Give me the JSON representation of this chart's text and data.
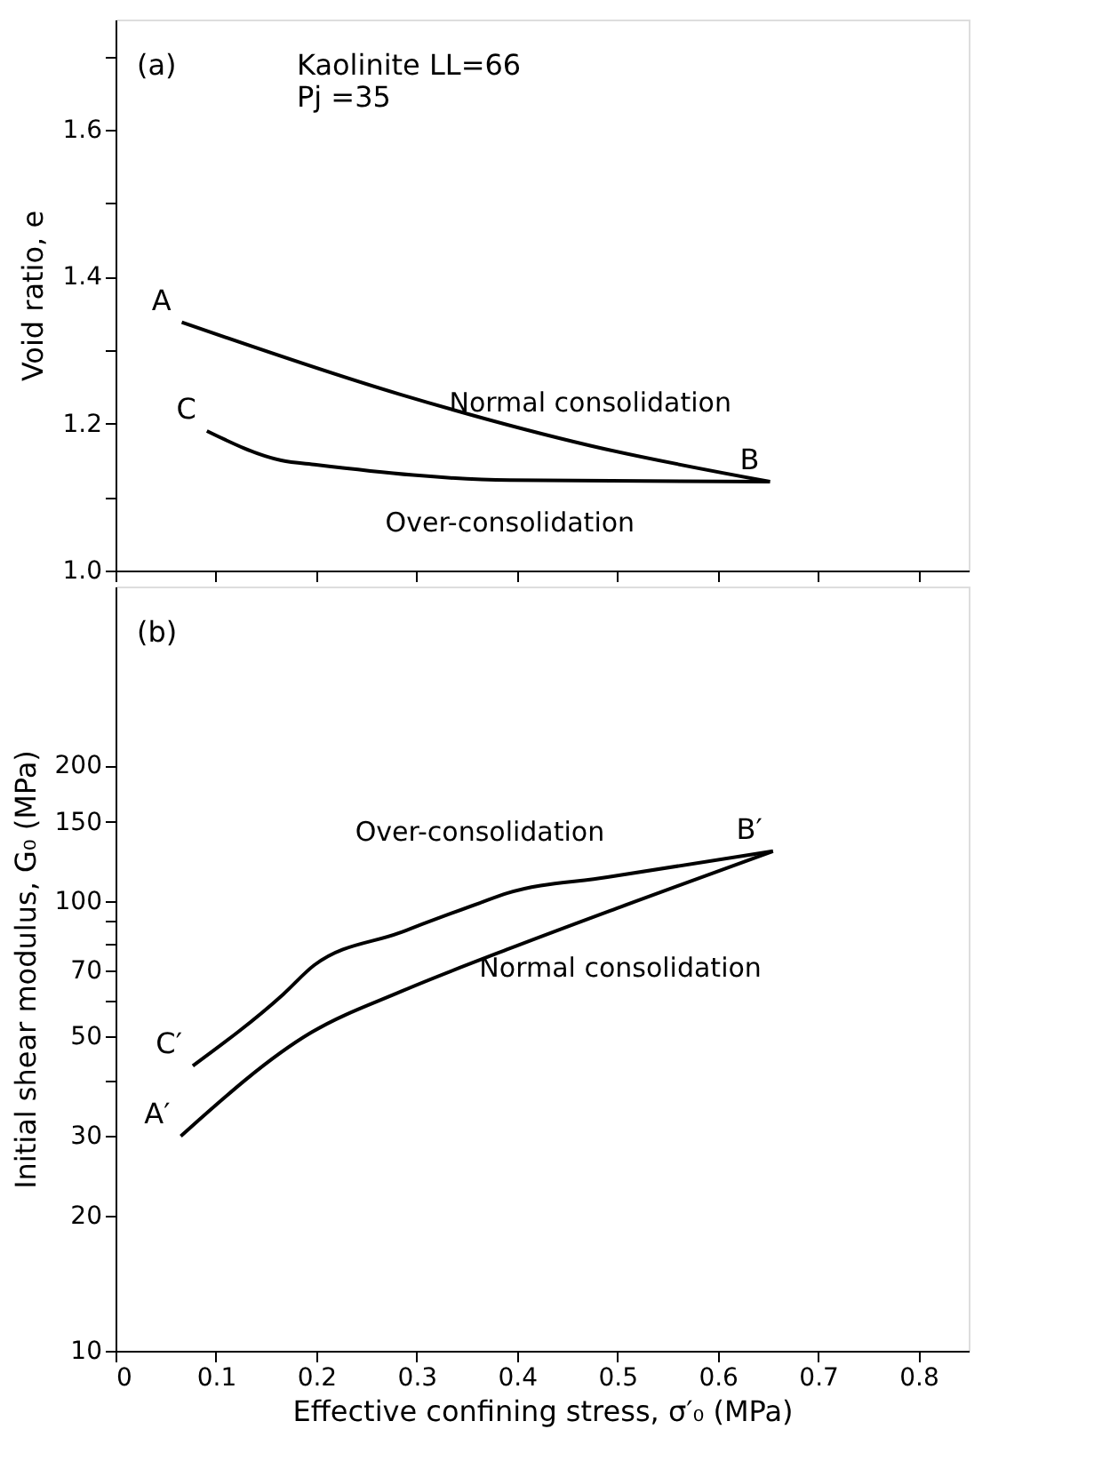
{
  "chart_data": [
    {
      "type": "line",
      "ylabel": "Void ratio, e",
      "xlim": [
        0,
        0.85
      ],
      "xticks": [
        0,
        0.1,
        0.2,
        0.3,
        0.4,
        0.5,
        0.6,
        0.7,
        0.8
      ],
      "ylim": [
        1.0,
        1.75
      ],
      "yticks": [
        {
          "value": 1.0,
          "label": "1.0"
        },
        {
          "value": 1.1,
          "label": null
        },
        1.2,
        {
          "value": 1.3,
          "label": null
        },
        1.4,
        {
          "value": 1.5,
          "label": null
        },
        1.6,
        {
          "value": 1.7,
          "label": null
        }
      ],
      "tick_labels": "y",
      "grid": false,
      "marker": "none",
      "line_style": "solid",
      "series": [
        {
          "name": "Normal consolidation",
          "color": "#000000",
          "x": [
            0.066,
            0.283,
            0.473,
            0.652
          ],
          "values": [
            1.338,
            1.24,
            1.17,
            1.121
          ]
        },
        {
          "name": "Over-consolidation",
          "color": "#000000",
          "x": [
            0.091,
            0.165,
            0.2,
            0.393,
            0.652
          ],
          "values": [
            1.19,
            1.15,
            1.144,
            1.123,
            1.121
          ]
        }
      ],
      "annotations": [
        "(a)",
        "Kaolinite  LL=66\n                Pj =35",
        {
          "text": "A",
          "x": 0.066,
          "y": 1.338
        },
        {
          "text": "B",
          "x": 0.652,
          "y": 1.121
        },
        {
          "text": "C",
          "x": 0.091,
          "y": 1.19
        }
      ]
    },
    {
      "type": "line",
      "xlabel": "Effective confining stress, σ′₀ (MPa)",
      "ylabel": "Initial shear modulus, G₀ (MPa)",
      "xlim": [
        0,
        0.85
      ],
      "xticks": [
        0,
        0.1,
        0.2,
        0.3,
        0.4,
        0.5,
        0.6,
        0.7,
        0.8
      ],
      "ylim": [
        10,
        500
      ],
      "log": true,
      "yticks": [
        10,
        20,
        30,
        {
          "value": 40,
          "label": null
        },
        50,
        {
          "value": 60,
          "label": null
        },
        70,
        {
          "value": 80,
          "label": null
        },
        {
          "value": 90,
          "label": null
        },
        100,
        150,
        200
      ],
      "grid": false,
      "marker": "none",
      "line_style": "solid",
      "series": [
        {
          "name": "Normal consolidation",
          "color": "#000000",
          "x": [
            0.065,
            0.195,
            0.285,
            0.39,
            0.503,
            0.655
          ],
          "values": [
            30,
            51,
            63,
            78,
            97,
            129
          ]
        },
        {
          "name": "Over-consolidation",
          "color": "#000000",
          "x": [
            0.077,
            0.167,
            0.198,
            0.283,
            0.363,
            0.39,
            0.49,
            0.655
          ],
          "values": [
            43,
            62,
            72,
            85,
            99,
            104,
            113,
            129
          ]
        }
      ],
      "annotations": [
        "(b)",
        {
          "text": "A′",
          "x": 0.065,
          "y": 30
        },
        {
          "text": "B′",
          "x": 0.655,
          "y": 129
        },
        {
          "text": "C′",
          "x": 0.077,
          "y": 43
        }
      ]
    }
  ]
}
